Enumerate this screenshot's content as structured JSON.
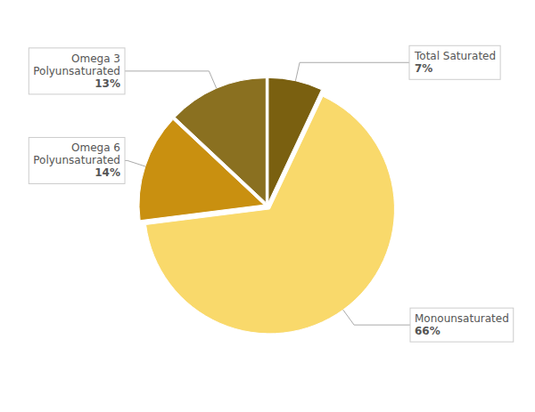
{
  "chart_data": {
    "type": "pie",
    "categories": [
      "Total Saturated",
      "Monounsaturated",
      "Omega 6\nPolyunsaturated",
      "Omega 3\nPolyunsaturated"
    ],
    "values": [
      7,
      66,
      14,
      13
    ],
    "value_labels": [
      "7%",
      "66%",
      "14%",
      "13%"
    ],
    "data_labels": true,
    "colors": [
      "#7a6010",
      "#f9d96b",
      "#c99010",
      "#8a7020"
    ]
  }
}
